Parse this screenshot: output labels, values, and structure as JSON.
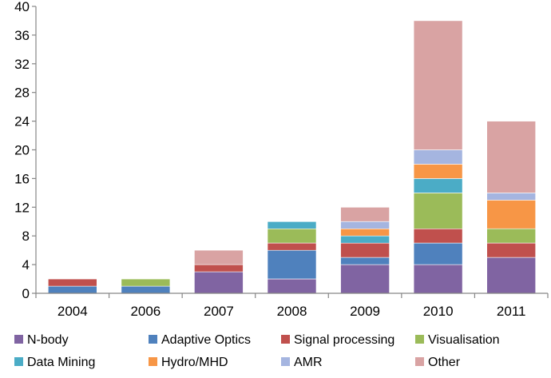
{
  "chart_data": {
    "type": "bar",
    "stacked": true,
    "categories": [
      "2004",
      "2006",
      "2007",
      "2008",
      "2009",
      "2010",
      "2011"
    ],
    "ylim": [
      0,
      40
    ],
    "yticks": [
      0,
      4,
      8,
      12,
      16,
      20,
      24,
      28,
      32,
      36,
      40
    ],
    "ytick_labels": [
      "0",
      "4",
      "8",
      "12",
      "16",
      "20",
      "24",
      "28",
      "32",
      "36",
      "40"
    ],
    "title": "",
    "xlabel": "",
    "ylabel": "",
    "grid": false,
    "legend_position": "bottom",
    "series": [
      {
        "name": "N-body",
        "color": "#8064A2",
        "values": [
          0,
          0,
          3,
          2,
          4,
          4,
          5
        ]
      },
      {
        "name": "Adaptive Optics",
        "color": "#4F81BD",
        "values": [
          1,
          1,
          0,
          4,
          1,
          3,
          0
        ]
      },
      {
        "name": "Signal processing",
        "color": "#C0504D",
        "values": [
          1,
          0,
          1,
          1,
          2,
          2,
          2
        ]
      },
      {
        "name": "Visualisation",
        "color": "#9BBB59",
        "values": [
          0,
          1,
          0,
          2,
          0,
          5,
          2
        ]
      },
      {
        "name": "Data Mining",
        "color": "#4BACC6",
        "values": [
          0,
          0,
          0,
          1,
          1,
          2,
          0
        ]
      },
      {
        "name": "Hydro/MHD",
        "color": "#F79646",
        "values": [
          0,
          0,
          0,
          0,
          1,
          2,
          4
        ]
      },
      {
        "name": "AMR",
        "color": "#A5B5E0",
        "values": [
          0,
          0,
          0,
          0,
          1,
          2,
          1
        ]
      },
      {
        "name": "Other",
        "color": "#D9A3A3",
        "values": [
          0,
          0,
          2,
          0,
          2,
          18,
          10
        ]
      }
    ]
  }
}
